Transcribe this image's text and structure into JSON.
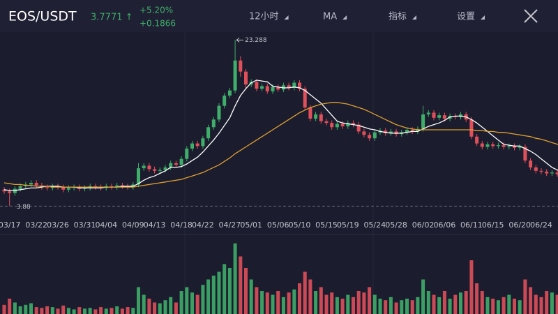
{
  "header": {
    "pair": "EOS/USDT",
    "price": "3.7771 ↑",
    "change_pct": "+5.20%",
    "change_abs": "+0.1866",
    "menu": [
      "12小时",
      "MA",
      "指标",
      "设置"
    ]
  },
  "chart_data": {
    "type": "candlestick",
    "categories": [
      null,
      "03/17",
      null,
      null,
      null,
      null,
      "03/22",
      null,
      null,
      null,
      "03/26",
      null,
      null,
      null,
      null,
      "03/31",
      null,
      null,
      null,
      "04/04",
      null,
      null,
      null,
      null,
      "04/09",
      null,
      null,
      null,
      "04/13",
      null,
      null,
      null,
      null,
      "04/18",
      null,
      null,
      null,
      "04/22",
      null,
      null,
      null,
      null,
      "04/27",
      null,
      null,
      null,
      "05/01",
      null,
      null,
      null,
      null,
      "05/06",
      null,
      null,
      null,
      "05/10",
      null,
      null,
      null,
      null,
      "05/15",
      null,
      null,
      null,
      "05/19",
      null,
      null,
      null,
      null,
      "05/24",
      null,
      null,
      null,
      "05/28",
      null,
      null,
      null,
      null,
      "06/02",
      null,
      null,
      null,
      "06/06",
      null,
      null,
      null,
      null,
      "06/11",
      null,
      null,
      null,
      "06/15",
      null,
      null,
      null,
      null,
      "06/20",
      null,
      null,
      null,
      "06/24",
      null,
      null,
      null,
      null
    ],
    "open": [
      5.8,
      5.6,
      5.4,
      5.9,
      6.2,
      6.4,
      6.6,
      6.3,
      6.1,
      6.0,
      6.2,
      6.1,
      5.8,
      6.0,
      6.1,
      5.9,
      6.0,
      6.2,
      6.1,
      6.0,
      6.2,
      6.1,
      6.3,
      6.2,
      6.1,
      6.4,
      8.3,
      8.6,
      8.2,
      8.0,
      8.1,
      8.4,
      8.9,
      8.7,
      9.4,
      10.6,
      11.2,
      10.9,
      11.8,
      13.1,
      14.0,
      15.6,
      16.8,
      17.4,
      20.9,
      19.6,
      18.1,
      18.4,
      17.6,
      17.9,
      17.3,
      17.8,
      17.5,
      18.0,
      17.7,
      18.3,
      17.6,
      15.4,
      14.1,
      14.6,
      13.8,
      13.6,
      13.1,
      13.5,
      13.2,
      13.6,
      13.4,
      12.6,
      12.2,
      11.8,
      12.5,
      12.7,
      12.4,
      12.6,
      12.3,
      12.5,
      12.8,
      12.6,
      12.9,
      14.6,
      14.8,
      14.2,
      14.5,
      14.1,
      14.4,
      14.3,
      14.6,
      14.0,
      12.0,
      11.2,
      10.8,
      11.1,
      10.9,
      11.0,
      10.8,
      10.9,
      10.7,
      10.8,
      9.2,
      8.4,
      8.0,
      7.9,
      7.7,
      7.8,
      7.6
    ],
    "high": [
      6.1,
      5.9,
      6.2,
      6.5,
      6.7,
      6.9,
      6.9,
      6.6,
      6.4,
      6.5,
      6.5,
      6.4,
      6.3,
      6.4,
      6.4,
      6.3,
      6.5,
      6.5,
      6.4,
      6.5,
      6.5,
      6.6,
      6.6,
      6.5,
      6.7,
      8.9,
      8.9,
      8.9,
      8.5,
      8.4,
      8.7,
      9.2,
      9.2,
      9.7,
      10.9,
      11.5,
      11.5,
      12.1,
      13.4,
      14.3,
      15.9,
      17.1,
      17.7,
      23.288,
      21.4,
      19.9,
      18.7,
      18.7,
      18.2,
      18.2,
      18.1,
      18.1,
      18.3,
      18.3,
      18.6,
      18.6,
      17.9,
      15.7,
      14.9,
      14.9,
      14.1,
      13.9,
      13.8,
      13.8,
      13.9,
      13.9,
      13.7,
      12.9,
      12.5,
      12.8,
      13.0,
      13.0,
      12.9,
      12.9,
      12.8,
      13.1,
      13.1,
      13.2,
      15.6,
      15.1,
      15.1,
      14.8,
      14.8,
      14.7,
      14.7,
      14.9,
      14.9,
      14.3,
      12.3,
      11.5,
      11.4,
      11.4,
      11.3,
      11.3,
      11.2,
      11.2,
      11.1,
      11.1,
      9.5,
      8.7,
      8.3,
      8.2,
      8.1,
      8.1,
      8.2
    ],
    "low": [
      5.3,
      3.88,
      5.1,
      5.6,
      5.9,
      6.1,
      6.0,
      5.8,
      5.7,
      5.7,
      5.8,
      5.5,
      5.5,
      5.7,
      5.6,
      5.6,
      5.7,
      5.8,
      5.7,
      5.7,
      5.8,
      5.8,
      5.9,
      5.8,
      5.8,
      6.1,
      8.0,
      7.9,
      7.7,
      7.7,
      7.8,
      8.1,
      8.4,
      8.4,
      9.1,
      10.3,
      10.6,
      10.6,
      11.5,
      12.8,
      13.7,
      15.3,
      16.5,
      17.1,
      19.0,
      17.6,
      17.8,
      17.3,
      17.3,
      17.0,
      17.0,
      17.2,
      17.2,
      17.4,
      17.4,
      17.3,
      15.1,
      13.8,
      13.8,
      13.5,
      13.3,
      12.8,
      12.8,
      12.9,
      12.9,
      13.1,
      12.3,
      11.9,
      11.5,
      11.5,
      12.2,
      12.1,
      12.1,
      12.0,
      12.0,
      12.2,
      12.3,
      12.3,
      12.6,
      14.3,
      13.9,
      13.9,
      13.8,
      13.8,
      14.0,
      14.0,
      13.7,
      11.7,
      10.9,
      10.5,
      10.5,
      10.6,
      10.6,
      10.5,
      10.5,
      10.4,
      10.4,
      8.9,
      8.1,
      7.7,
      7.6,
      7.4,
      7.4,
      7.3,
      7.3
    ],
    "close": [
      5.6,
      5.4,
      5.9,
      6.2,
      6.4,
      6.6,
      6.3,
      6.1,
      6.0,
      6.2,
      6.1,
      5.8,
      6.0,
      6.1,
      5.9,
      6.0,
      6.2,
      6.1,
      6.0,
      6.2,
      6.1,
      6.3,
      6.2,
      6.1,
      6.4,
      8.3,
      8.6,
      8.2,
      8.0,
      8.1,
      8.4,
      8.9,
      8.7,
      9.4,
      10.6,
      11.2,
      10.9,
      11.8,
      13.1,
      14.0,
      15.6,
      16.8,
      17.4,
      20.9,
      19.6,
      18.1,
      18.4,
      17.6,
      17.9,
      17.3,
      17.8,
      17.5,
      18.0,
      17.7,
      18.3,
      17.6,
      15.4,
      14.1,
      14.6,
      13.8,
      13.6,
      13.1,
      13.5,
      13.2,
      13.6,
      13.4,
      12.6,
      12.2,
      11.8,
      12.5,
      12.7,
      12.4,
      12.6,
      12.3,
      12.5,
      12.8,
      12.6,
      12.9,
      14.6,
      14.8,
      14.2,
      14.5,
      14.1,
      14.4,
      14.3,
      14.6,
      14.0,
      12.0,
      11.2,
      10.8,
      11.1,
      10.9,
      11.0,
      10.8,
      10.9,
      10.7,
      10.8,
      9.2,
      8.4,
      8.0,
      7.9,
      7.7,
      7.8,
      7.6,
      7.9
    ],
    "up_color": "#3fae6a",
    "down_color": "#e0505a",
    "ylim": [
      3.5,
      24.3
    ],
    "lines": [
      {
        "color": "#ffffff",
        "values": [
          5.8,
          5.7,
          5.7,
          5.8,
          5.9,
          6.0,
          6.0,
          6.1,
          6.2,
          6.2,
          6.2,
          6.1,
          6.1,
          6.1,
          6.0,
          6.0,
          6.0,
          6.0,
          6.0,
          6.1,
          6.1,
          6.1,
          6.2,
          6.2,
          6.2,
          6.5,
          6.9,
          7.2,
          7.4,
          7.7,
          8.0,
          8.4,
          8.4,
          8.5,
          8.8,
          9.2,
          9.6,
          10.2,
          10.9,
          11.6,
          12.4,
          13.3,
          14.2,
          15.6,
          16.8,
          17.6,
          18.3,
          18.6,
          18.5,
          18.4,
          17.9,
          17.8,
          17.7,
          17.7,
          17.8,
          17.7,
          17.4,
          16.9,
          16.4,
          15.9,
          15.2,
          14.5,
          13.8,
          13.6,
          13.5,
          13.4,
          13.3,
          13.1,
          12.9,
          12.8,
          12.6,
          12.5,
          12.4,
          12.4,
          12.4,
          12.5,
          12.6,
          12.6,
          12.9,
          13.2,
          13.4,
          13.6,
          13.9,
          14.3,
          14.4,
          14.4,
          14.3,
          14.0,
          13.6,
          13.1,
          12.6,
          12.1,
          11.6,
          11.1,
          11.0,
          10.9,
          10.9,
          10.6,
          10.3,
          9.9,
          9.4,
          8.9,
          8.4,
          8.1,
          7.8
        ]
      },
      {
        "color": "#e0a030",
        "values": [
          6.6,
          6.5,
          6.4,
          6.4,
          6.3,
          6.3,
          6.2,
          6.2,
          6.2,
          6.1,
          6.1,
          6.1,
          6.1,
          6.1,
          6.1,
          6.1,
          6.1,
          6.1,
          6.1,
          6.1,
          6.1,
          6.1,
          6.1,
          6.1,
          6.1,
          6.2,
          6.3,
          6.4,
          6.5,
          6.6,
          6.7,
          6.8,
          6.9,
          7.0,
          7.2,
          7.4,
          7.6,
          7.8,
          8.1,
          8.4,
          8.7,
          9.1,
          9.5,
          10.0,
          10.4,
          10.8,
          11.2,
          11.6,
          12.0,
          12.4,
          12.8,
          13.2,
          13.6,
          14.0,
          14.4,
          14.8,
          15.1,
          15.4,
          15.6,
          15.8,
          15.9,
          16.0,
          16.0,
          15.9,
          15.8,
          15.6,
          15.4,
          15.2,
          14.9,
          14.6,
          14.3,
          14.0,
          13.7,
          13.4,
          13.2,
          13.0,
          12.9,
          12.8,
          12.8,
          12.8,
          12.8,
          12.8,
          12.8,
          12.8,
          12.8,
          12.8,
          12.8,
          12.8,
          12.7,
          12.7,
          12.6,
          12.6,
          12.5,
          12.5,
          12.4,
          12.3,
          12.2,
          12.1,
          12.0,
          11.8,
          11.7,
          11.5,
          11.3,
          11.1,
          10.9
        ]
      }
    ],
    "volume": {
      "ylim": [
        0,
        100
      ],
      "values": [
        12,
        20,
        15,
        10,
        12,
        14,
        9,
        8,
        10,
        9,
        7,
        11,
        8,
        6,
        9,
        7,
        8,
        6,
        9,
        7,
        8,
        10,
        7,
        9,
        8,
        35,
        25,
        20,
        15,
        14,
        18,
        22,
        15,
        30,
        35,
        28,
        25,
        38,
        45,
        50,
        55,
        65,
        60,
        92,
        75,
        60,
        45,
        35,
        30,
        28,
        25,
        30,
        22,
        28,
        32,
        40,
        55,
        45,
        30,
        35,
        25,
        28,
        22,
        20,
        25,
        22,
        30,
        28,
        35,
        25,
        20,
        18,
        22,
        15,
        18,
        20,
        18,
        22,
        45,
        30,
        25,
        22,
        30,
        20,
        25,
        28,
        30,
        70,
        40,
        30,
        22,
        20,
        18,
        22,
        25,
        20,
        18,
        45,
        35,
        25,
        22,
        30,
        28,
        25,
        20
      ]
    }
  }
}
